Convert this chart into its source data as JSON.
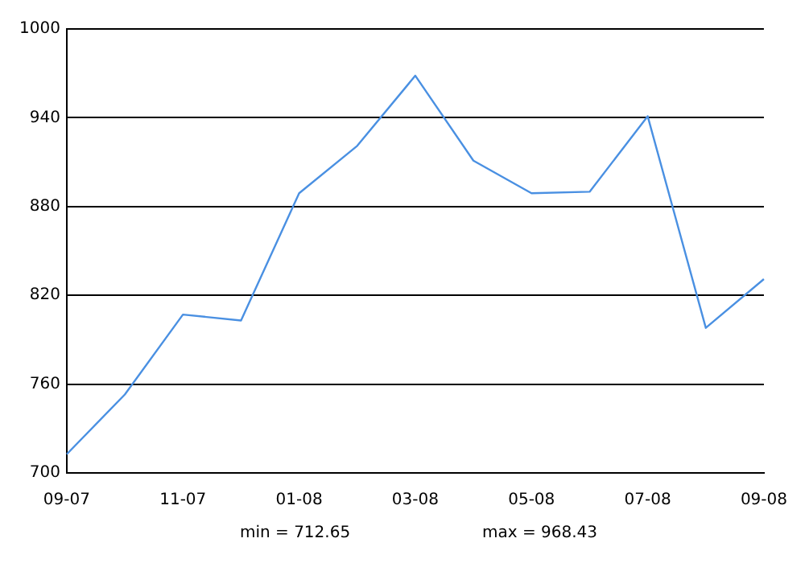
{
  "chart_data": {
    "type": "line",
    "categories": [
      "09-07",
      null,
      "11-07",
      null,
      "01-08",
      null,
      "03-08",
      null,
      "05-08",
      null,
      "07-08",
      null,
      "09-08"
    ],
    "series": [
      {
        "color": "#4a90e2",
        "values": [
          712.65,
          753,
          807,
          803,
          889,
          921,
          968.43,
          911,
          889,
          890,
          941,
          798,
          831
        ]
      }
    ],
    "ylim": [
      700,
      1000
    ],
    "yticks": [
      700,
      760,
      820,
      880,
      940,
      1000
    ],
    "grid": "y",
    "legend": false,
    "marker": "none",
    "line_style": "solid",
    "annotations": [
      "min = 712.65",
      "max = 968.43"
    ]
  }
}
